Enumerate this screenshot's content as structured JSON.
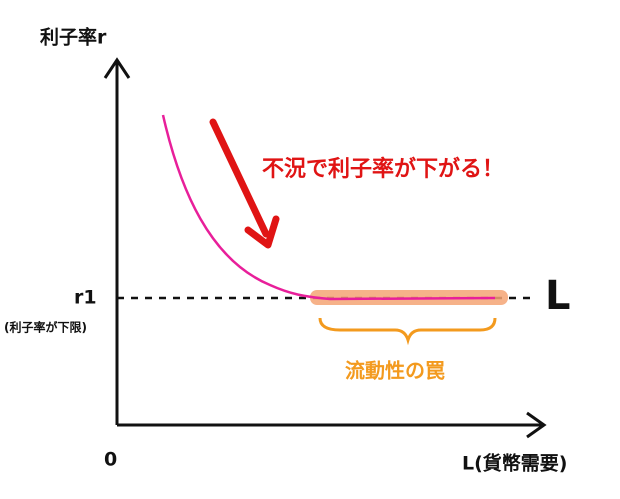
{
  "axes": {
    "y_label": "利子率r",
    "origin": "0",
    "x_label": "L(貨幣需要)"
  },
  "floor": {
    "label": "r1",
    "note": "(利子率が下限)"
  },
  "annotation": "不況で利子率が下がる！",
  "trap": "流動性の罠",
  "curve_label": "L"
}
